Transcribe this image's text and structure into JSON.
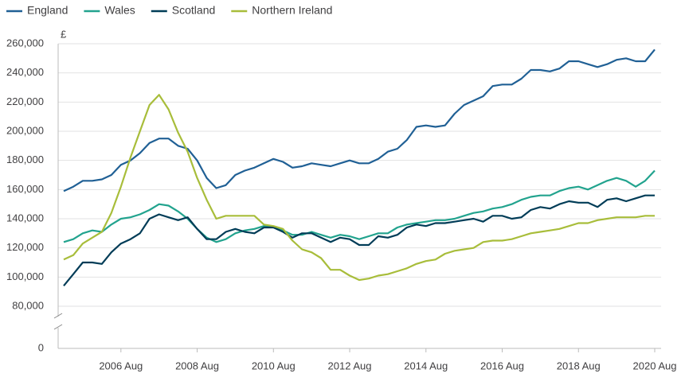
{
  "chart_data": {
    "type": "line",
    "ylabel": "£",
    "categories": [
      null,
      null,
      null,
      null,
      null,
      null,
      "2006 Aug",
      null,
      null,
      null,
      null,
      null,
      null,
      null,
      "2008 Aug",
      null,
      null,
      null,
      null,
      null,
      null,
      null,
      "2010 Aug",
      null,
      null,
      null,
      null,
      null,
      null,
      null,
      "2012 Aug",
      null,
      null,
      null,
      null,
      null,
      null,
      null,
      "2014 Aug",
      null,
      null,
      null,
      null,
      null,
      null,
      null,
      "2016 Aug",
      null,
      null,
      null,
      null,
      null,
      null,
      null,
      "2018 Aug",
      null,
      null,
      null,
      null,
      null,
      null,
      null,
      "2020 Aug"
    ],
    "series": [
      {
        "name": "England",
        "color": "#206095",
        "values": [
          159000,
          162000,
          166000,
          166000,
          167000,
          170000,
          177000,
          180000,
          185000,
          192000,
          195000,
          195000,
          190000,
          188000,
          180000,
          168000,
          161000,
          163000,
          170000,
          173000,
          175000,
          178000,
          181000,
          179000,
          175000,
          176000,
          178000,
          177000,
          176000,
          178000,
          180000,
          178000,
          178000,
          181000,
          186000,
          188000,
          194000,
          203000,
          204000,
          203000,
          204000,
          212000,
          218000,
          221000,
          224000,
          231000,
          232000,
          232000,
          236000,
          242000,
          242000,
          241000,
          243000,
          248000,
          248000,
          246000,
          244000,
          246000,
          249000,
          250000,
          248000,
          248000,
          256000
        ]
      },
      {
        "name": "Wales",
        "color": "#22a38e",
        "values": [
          124000,
          126000,
          130000,
          132000,
          131000,
          136000,
          140000,
          141000,
          143000,
          146000,
          150000,
          149000,
          145000,
          140000,
          133000,
          127000,
          124000,
          126000,
          130000,
          132000,
          133000,
          135000,
          134000,
          132000,
          129000,
          129000,
          131000,
          129000,
          127000,
          129000,
          128000,
          126000,
          128000,
          130000,
          130000,
          134000,
          136000,
          137000,
          138000,
          139000,
          139000,
          140000,
          142000,
          144000,
          145000,
          147000,
          148000,
          150000,
          153000,
          155000,
          156000,
          156000,
          159000,
          161000,
          162000,
          160000,
          163000,
          166000,
          168000,
          166000,
          162000,
          166000,
          173000
        ]
      },
      {
        "name": "Scotland",
        "color": "#003c57",
        "values": [
          94000,
          102000,
          110000,
          110000,
          109000,
          117000,
          123000,
          126000,
          130000,
          140000,
          143000,
          141000,
          139000,
          141000,
          133000,
          126000,
          126000,
          131000,
          133000,
          131000,
          130000,
          134000,
          134000,
          131000,
          127000,
          130000,
          130000,
          127000,
          124000,
          127000,
          126000,
          122000,
          122000,
          128000,
          127000,
          129000,
          134000,
          136000,
          135000,
          137000,
          137000,
          138000,
          139000,
          140000,
          138000,
          142000,
          142000,
          140000,
          141000,
          146000,
          148000,
          147000,
          150000,
          152000,
          151000,
          151000,
          148000,
          153000,
          154000,
          152000,
          154000,
          156000,
          156000
        ]
      },
      {
        "name": "Northern Ireland",
        "color": "#a8bd3a",
        "values": [
          112000,
          115000,
          123000,
          127000,
          131000,
          144000,
          162000,
          182000,
          200000,
          218000,
          225000,
          215000,
          199000,
          186000,
          168000,
          153000,
          140000,
          142000,
          142000,
          142000,
          142000,
          136000,
          135000,
          133000,
          125000,
          119000,
          117000,
          113000,
          105000,
          105000,
          101000,
          98000,
          99000,
          101000,
          102000,
          104000,
          106000,
          109000,
          111000,
          112000,
          116000,
          118000,
          119000,
          120000,
          124000,
          125000,
          125000,
          126000,
          128000,
          130000,
          131000,
          132000,
          133000,
          135000,
          137000,
          137000,
          139000,
          140000,
          141000,
          141000,
          141000,
          142000,
          142000
        ]
      }
    ],
    "ylim": [
      0,
      260000
    ],
    "ybreak": [
      0,
      80000
    ],
    "yticks": [
      {
        "value": 0,
        "label": "0"
      },
      {
        "value": 80000,
        "label": "80,000"
      },
      {
        "value": 100000,
        "label": "100,000"
      },
      {
        "value": 120000,
        "label": "120,000"
      },
      {
        "value": 140000,
        "label": "140,000"
      },
      {
        "value": 160000,
        "label": "160,000"
      },
      {
        "value": 180000,
        "label": "180,000"
      },
      {
        "value": 200000,
        "label": "200,000"
      },
      {
        "value": 220000,
        "label": "220,000"
      },
      {
        "value": 240000,
        "label": "240,000"
      },
      {
        "value": 260000,
        "label": "260,000"
      }
    ],
    "grid": true,
    "legend": "top"
  }
}
